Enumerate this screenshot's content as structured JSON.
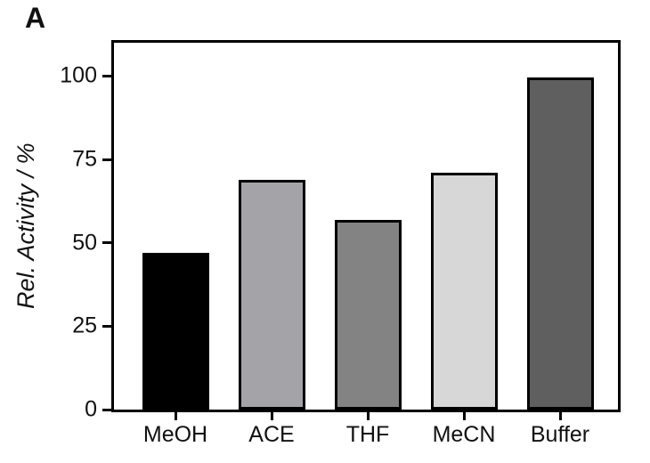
{
  "panel_label": "A",
  "chart_data": {
    "type": "bar",
    "title": "",
    "categories": [
      "MeOH",
      "ACE",
      "THF",
      "MeCN",
      "Buffer"
    ],
    "values": [
      47,
      69,
      57,
      71,
      99.5
    ],
    "bar_colors": [
      "#000000",
      "#a4a4a8",
      "#838383",
      "#d7d7d7",
      "#5f5f5f"
    ],
    "bar_border_color": "#000000",
    "xlabel": "",
    "ylabel": "Rel. Activity / %",
    "ylim": [
      0,
      110
    ],
    "yticks": [
      0,
      25,
      50,
      75,
      100
    ],
    "grid": false,
    "legend": "none",
    "frame": true
  }
}
